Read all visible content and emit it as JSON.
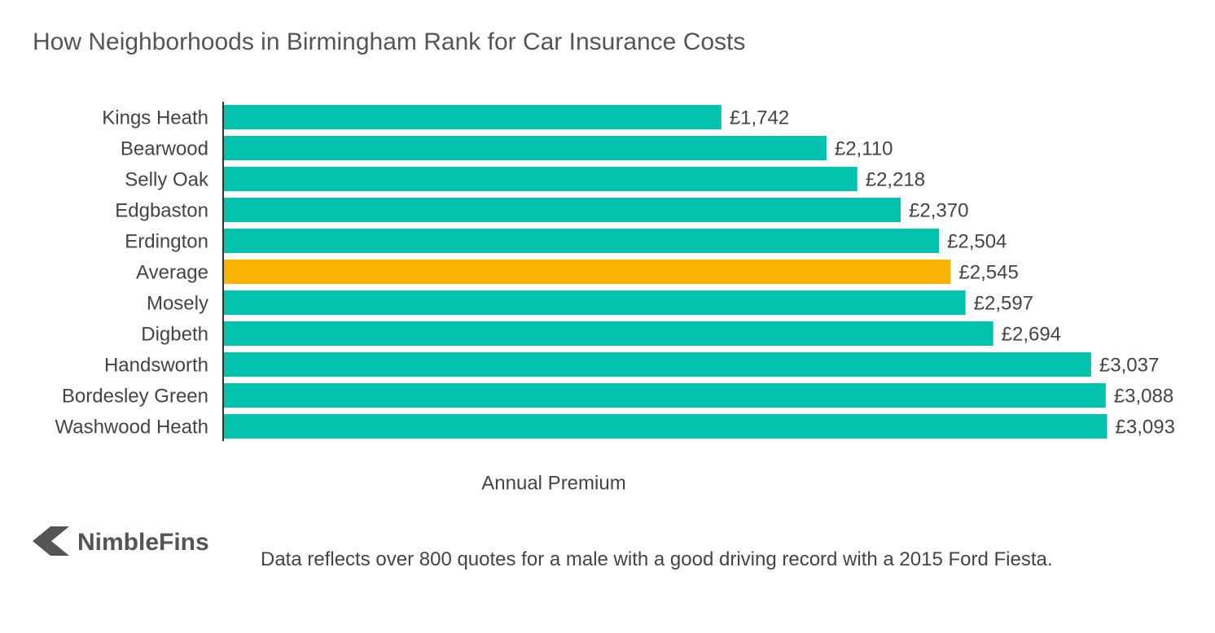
{
  "chart_data": {
    "type": "barh",
    "title": "How Neighborhoods in Birmingham Rank for Car Insurance Costs",
    "xlabel": "Annual Premium",
    "categories": [
      "Kings Heath",
      "Bearwood",
      "Selly Oak",
      "Edgbaston",
      "Erdington",
      "Average",
      "Mosely",
      "Digbeth",
      "Handsworth",
      "Bordesley Green",
      "Washwood Heath"
    ],
    "values": [
      1742,
      2110,
      2218,
      2370,
      2504,
      2545,
      2597,
      2694,
      3037,
      3088,
      3093
    ],
    "value_labels": [
      "£1,742",
      "£2,110",
      "£2,218",
      "£2,370",
      "£2,504",
      "£2,545",
      "£2,597",
      "£2,694",
      "£3,037",
      "£3,088",
      "£3,093"
    ],
    "colors": [
      "#00c2ad",
      "#00c2ad",
      "#00c2ad",
      "#00c2ad",
      "#00c2ad",
      "#f8b400",
      "#00c2ad",
      "#00c2ad",
      "#00c2ad",
      "#00c2ad",
      "#00c2ad"
    ],
    "xlim": [
      0,
      3100
    ]
  },
  "footer": {
    "brand": "NimbleFins",
    "note": "Data reflects over 800 quotes for a male with a good driving record with a 2015 Ford Fiesta."
  }
}
